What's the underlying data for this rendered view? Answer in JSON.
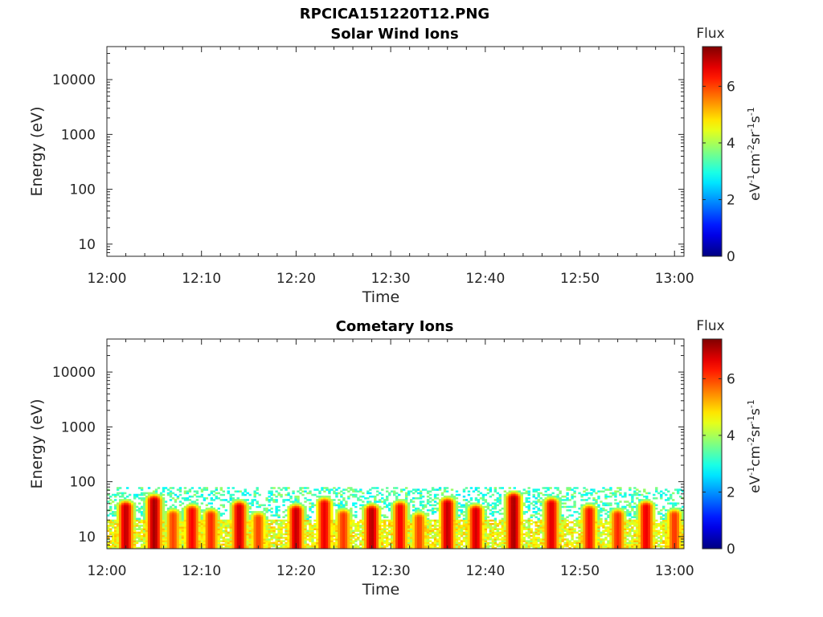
{
  "figure": {
    "title": "RPCICA151220T12.PNG"
  },
  "chart_data": [
    {
      "type": "heatmap",
      "title": "Solar Wind Ions",
      "xlabel": "Time",
      "ylabel": "Energy (eV)",
      "x_ticks": [
        "12:00",
        "12:10",
        "12:20",
        "12:30",
        "12:40",
        "12:50",
        "13:00"
      ],
      "y_ticks": [
        "10",
        "100",
        "1000",
        "10000"
      ],
      "y_scale": "log",
      "ylim": [
        6,
        40000
      ],
      "xlim": [
        "12:00",
        "13:01"
      ],
      "colorbar": {
        "label": "Flux",
        "unit_label": "eV-1cm-2sr-1s-1",
        "ticks": [
          "0",
          "2",
          "4",
          "6"
        ],
        "range": [
          0,
          7.4
        ],
        "colormap": "jet"
      },
      "data": "none (empty panel)"
    },
    {
      "type": "heatmap",
      "title": "Cometary Ions",
      "xlabel": "Time",
      "ylabel": "Energy (eV)",
      "x_ticks": [
        "12:00",
        "12:10",
        "12:20",
        "12:30",
        "12:40",
        "12:50",
        "13:00"
      ],
      "y_ticks": [
        "10",
        "100",
        "1000",
        "10000"
      ],
      "y_scale": "log",
      "ylim": [
        6,
        40000
      ],
      "xlim": [
        "12:00",
        "13:01"
      ],
      "colorbar": {
        "label": "Flux",
        "unit_label": "eV-1cm-2sr-1s-1",
        "ticks": [
          "0",
          "2",
          "4",
          "6"
        ],
        "range": [
          0,
          7.4
        ],
        "colormap": "jet"
      },
      "energy_max_eV": 80,
      "bursts": [
        {
          "time": "12:02",
          "peak_flux": 6.9,
          "top_eV": 35
        },
        {
          "time": "12:05",
          "peak_flux": 7.1,
          "top_eV": 45
        },
        {
          "time": "12:07",
          "peak_flux": 6.0,
          "top_eV": 25
        },
        {
          "time": "12:09",
          "peak_flux": 6.5,
          "top_eV": 30
        },
        {
          "time": "12:11",
          "peak_flux": 6.2,
          "top_eV": 25
        },
        {
          "time": "12:14",
          "peak_flux": 6.8,
          "top_eV": 35
        },
        {
          "time": "12:16",
          "peak_flux": 6.0,
          "top_eV": 22
        },
        {
          "time": "12:20",
          "peak_flux": 6.9,
          "top_eV": 30
        },
        {
          "time": "12:23",
          "peak_flux": 6.6,
          "top_eV": 40
        },
        {
          "time": "12:25",
          "peak_flux": 6.1,
          "top_eV": 25
        },
        {
          "time": "12:28",
          "peak_flux": 7.0,
          "top_eV": 30
        },
        {
          "time": "12:31",
          "peak_flux": 6.5,
          "top_eV": 35
        },
        {
          "time": "12:33",
          "peak_flux": 6.0,
          "top_eV": 22
        },
        {
          "time": "12:36",
          "peak_flux": 6.9,
          "top_eV": 40
        },
        {
          "time": "12:39",
          "peak_flux": 6.8,
          "top_eV": 30
        },
        {
          "time": "12:43",
          "peak_flux": 7.1,
          "top_eV": 50
        },
        {
          "time": "12:47",
          "peak_flux": 6.7,
          "top_eV": 40
        },
        {
          "time": "12:51",
          "peak_flux": 6.4,
          "top_eV": 30
        },
        {
          "time": "12:54",
          "peak_flux": 6.2,
          "top_eV": 25
        },
        {
          "time": "12:57",
          "peak_flux": 6.6,
          "top_eV": 35
        },
        {
          "time": "13:00",
          "peak_flux": 6.1,
          "top_eV": 25
        }
      ]
    }
  ]
}
